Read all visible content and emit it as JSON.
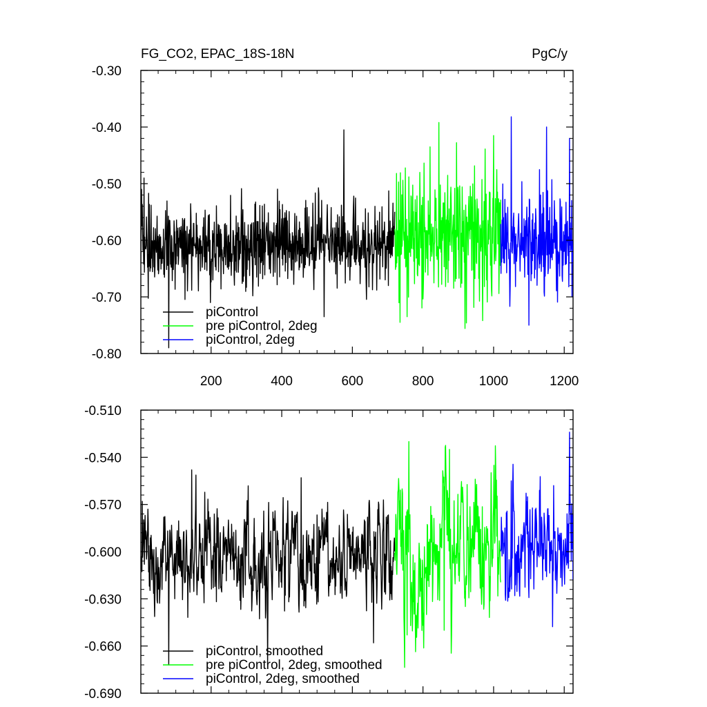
{
  "chart_data": [
    {
      "type": "line",
      "title": "FG_CO2, EPAC_18S-18N",
      "units": "PgC/y",
      "xlim": [
        1,
        1225
      ],
      "ylim": [
        -0.8,
        -0.3
      ],
      "x_ticks": [
        200,
        400,
        600,
        800,
        1000,
        1200
      ],
      "x_tick_labels": [
        "200",
        "400",
        "600",
        "800",
        "1000",
        "1200"
      ],
      "y_ticks": [
        -0.8,
        -0.7,
        -0.6,
        -0.5,
        -0.4,
        -0.3
      ],
      "y_tick_labels": [
        "-0.80",
        "-0.70",
        "-0.60",
        "-0.50",
        "-0.40",
        "-0.30"
      ],
      "grid": false,
      "legend_position": "bottom-left",
      "series": [
        {
          "name": "piControl",
          "color": "#000000",
          "x_range": [
            1,
            720
          ],
          "mean": [
            [
              1,
              -0.61
            ],
            [
              120,
              -0.615
            ],
            [
              240,
              -0.615
            ],
            [
              360,
              -0.605
            ],
            [
              480,
              -0.605
            ],
            [
              600,
              -0.605
            ],
            [
              720,
              -0.605
            ]
          ],
          "spread": 0.035,
          "extremes": [
            [
              3,
              -0.51
            ],
            [
              10,
              -0.49
            ],
            [
              80,
              -0.79
            ],
            [
              198,
              -0.71
            ],
            [
              520,
              -0.735
            ],
            [
              576,
              -0.405
            ]
          ]
        },
        {
          "name": "pre piControl, 2deg",
          "color": "#00ff00",
          "x_range": [
            720,
            1020
          ],
          "mean": [
            [
              720,
              -0.595
            ],
            [
              800,
              -0.595
            ],
            [
              900,
              -0.595
            ],
            [
              1020,
              -0.595
            ]
          ],
          "spread": 0.055,
          "extremes": [
            [
              845,
              -0.392
            ],
            [
              820,
              -0.435
            ],
            [
              1000,
              -0.415
            ],
            [
              755,
              -0.735
            ],
            [
              980,
              -0.67
            ]
          ]
        },
        {
          "name": "piControl, 2deg",
          "color": "#0000ff",
          "x_range": [
            1020,
            1225
          ],
          "mean": [
            [
              1020,
              -0.6
            ],
            [
              1120,
              -0.6
            ],
            [
              1225,
              -0.595
            ]
          ],
          "spread": 0.045,
          "extremes": [
            [
              1050,
              -0.382
            ],
            [
              1100,
              -0.75
            ],
            [
              1150,
              -0.4
            ],
            [
              1215,
              -0.42
            ],
            [
              1222,
              -0.7
            ]
          ]
        }
      ]
    },
    {
      "type": "line",
      "xlim": [
        1,
        1225
      ],
      "ylim": [
        -0.69,
        -0.51
      ],
      "x_ticks": [
        200,
        400,
        600,
        800,
        1000,
        1200
      ],
      "y_ticks": [
        -0.69,
        -0.66,
        -0.63,
        -0.6,
        -0.57,
        -0.54,
        -0.51
      ],
      "y_tick_labels": [
        "-0.690",
        "-0.660",
        "-0.630",
        "-0.600",
        "-0.570",
        "-0.540",
        "-0.510"
      ],
      "grid": false,
      "legend_position": "bottom-left",
      "series": [
        {
          "name": "piControl, smoothed",
          "color": "#000000",
          "x_range": [
            1,
            720
          ],
          "mean": [
            [
              1,
              -0.605
            ],
            [
              120,
              -0.607
            ],
            [
              240,
              -0.607
            ],
            [
              360,
              -0.602
            ],
            [
              480,
              -0.6
            ],
            [
              600,
              -0.6
            ],
            [
              720,
              -0.6
            ]
          ],
          "spread": 0.016,
          "extremes": [
            [
              5,
              -0.568
            ],
            [
              80,
              -0.672
            ],
            [
              145,
              -0.548
            ],
            [
              360,
              -0.672
            ],
            [
              455,
              -0.553
            ],
            [
              660,
              -0.658
            ]
          ]
        },
        {
          "name": "pre piControl, 2deg, smoothed",
          "color": "#00ff00",
          "x_range": [
            720,
            1020
          ],
          "mean": [
            [
              720,
              -0.6
            ],
            [
              870,
              -0.598
            ],
            [
              1020,
              -0.598
            ]
          ],
          "spread": 0.022,
          "extremes": [
            [
              760,
              -0.53
            ],
            [
              875,
              -0.535
            ],
            [
              755,
              -0.653
            ],
            [
              810,
              -0.64
            ],
            [
              860,
              -0.65
            ]
          ]
        },
        {
          "name": "piControl, 2deg, smoothed",
          "color": "#0000ff",
          "x_range": [
            1020,
            1225
          ],
          "mean": [
            [
              1020,
              -0.598
            ],
            [
              1120,
              -0.598
            ],
            [
              1225,
              -0.595
            ]
          ],
          "spread": 0.018,
          "extremes": [
            [
              1050,
              -0.555
            ],
            [
              1170,
              -0.558
            ],
            [
              1215,
              -0.524
            ],
            [
              1222,
              -0.598
            ],
            [
              1060,
              -0.628
            ]
          ]
        }
      ]
    }
  ]
}
